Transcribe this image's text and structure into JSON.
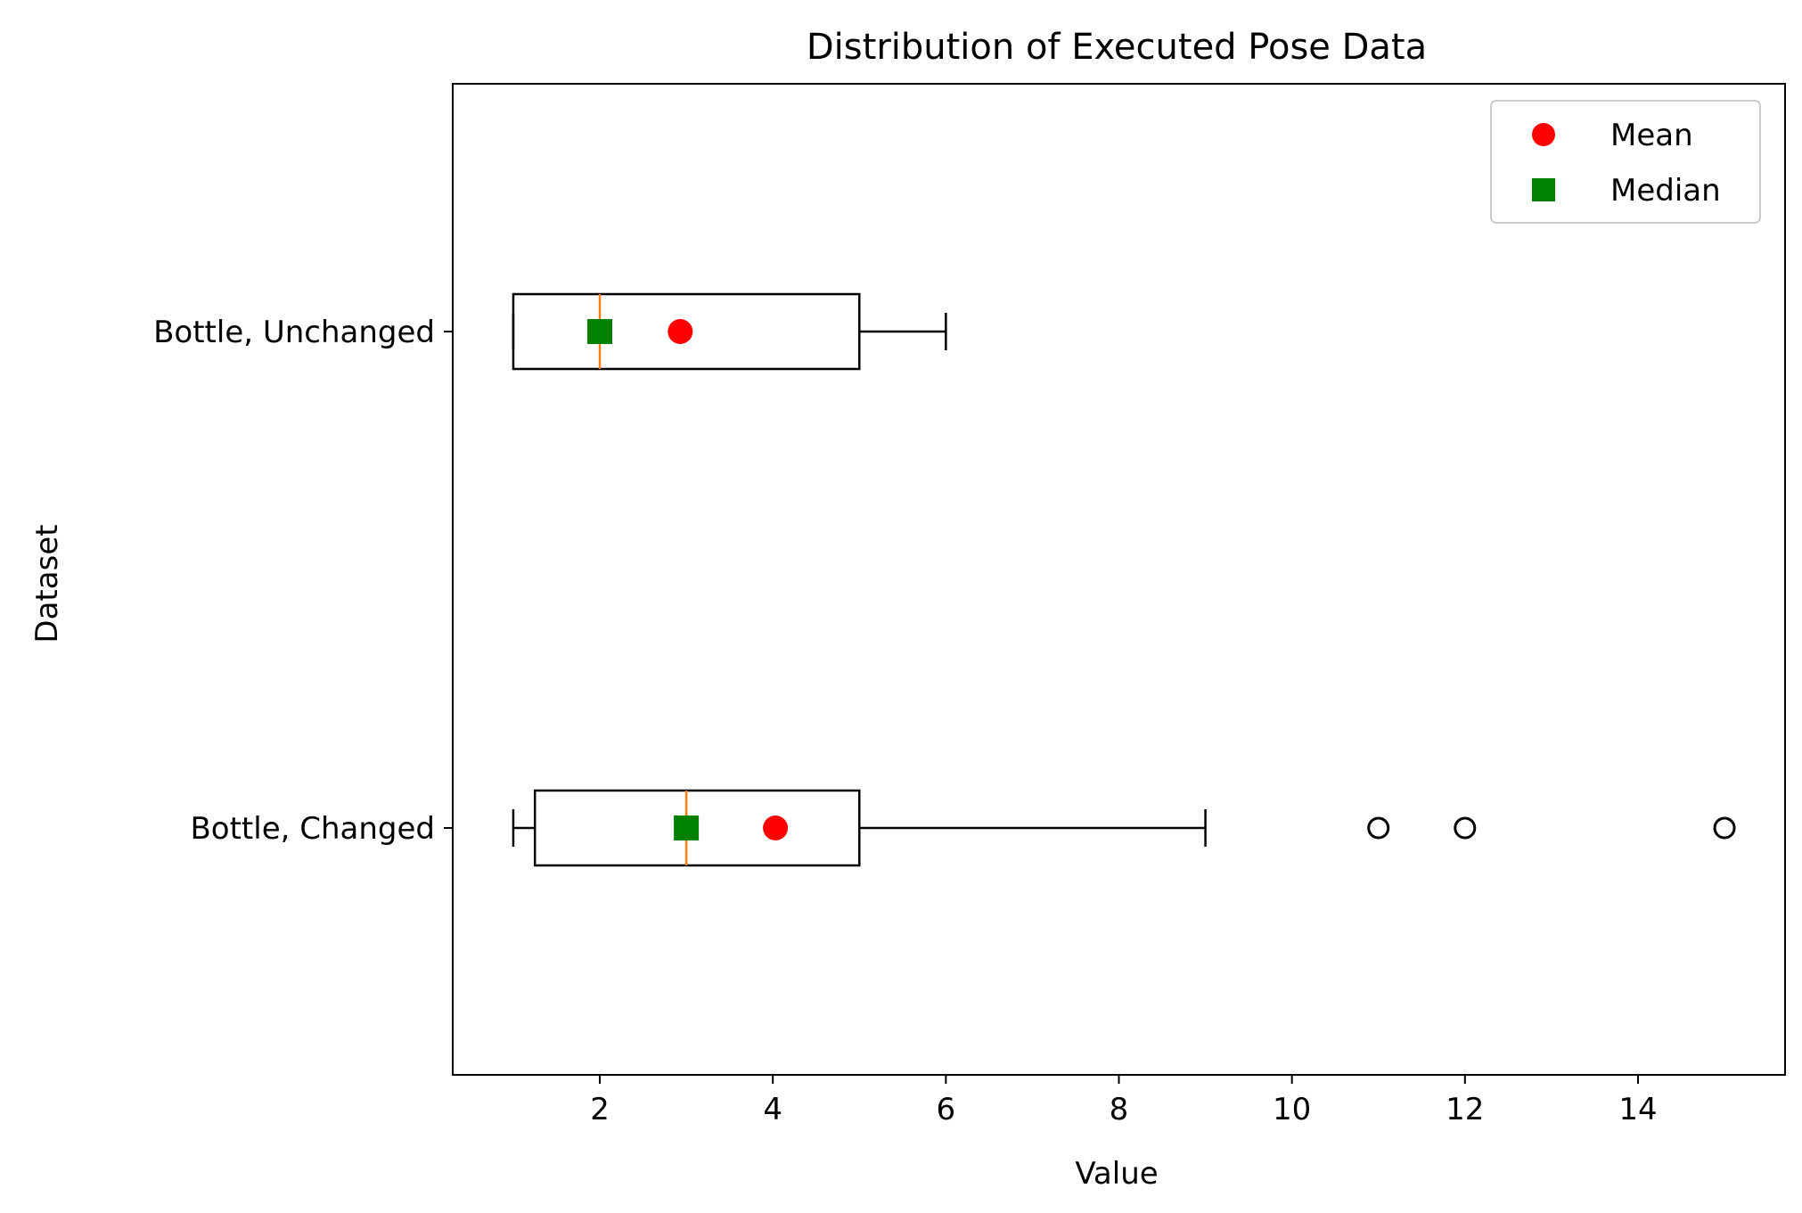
{
  "chart_data": {
    "type": "boxplot",
    "orientation": "horizontal",
    "title": "Distribution of Executed Pose Data",
    "xlabel": "Value",
    "ylabel": "Dataset",
    "xlim": [
      0.3,
      15.7
    ],
    "xticks": [
      2,
      4,
      6,
      8,
      10,
      12,
      14
    ],
    "categories": [
      "Bottle, Unchanged",
      "Bottle, Changed"
    ],
    "series": [
      {
        "name": "Bottle, Unchanged",
        "whisker_low": 1,
        "q1": 1,
        "median": 2,
        "q3": 5,
        "whisker_high": 6,
        "mean": 2.93,
        "outliers": []
      },
      {
        "name": "Bottle, Changed",
        "whisker_low": 1,
        "q1": 1.25,
        "median": 3,
        "q3": 5,
        "whisker_high": 9,
        "mean": 4.03,
        "outliers": [
          11,
          12,
          15
        ]
      }
    ],
    "legend": {
      "position": "top-right",
      "entries": [
        {
          "label": "Mean",
          "marker": "circle",
          "color": "#ff0000"
        },
        {
          "label": "Median",
          "marker": "square",
          "color": "#008000"
        }
      ]
    },
    "colors": {
      "box": "#000000",
      "median_line": "#ff7f0e",
      "mean_marker": "#ff0000",
      "median_marker": "#008000"
    },
    "grid": false
  }
}
